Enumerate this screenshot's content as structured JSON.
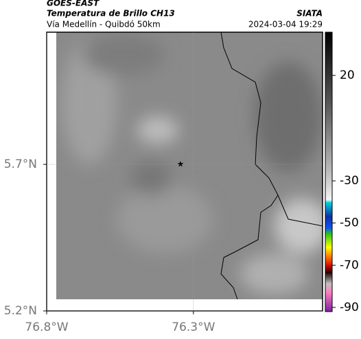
{
  "header": {
    "satellite": "GOES-EAST",
    "product": "Temperatura de Brillo CH13",
    "region": "Vía Medellín - Quibdó 50km",
    "source": "SIATA",
    "datetime": "2024-03-04 19:29"
  },
  "map": {
    "xlim": [
      -76.8,
      -75.86
    ],
    "ylim": [
      5.2,
      6.151
    ],
    "xticks": [
      {
        "value": -76.8,
        "label": "76.8°W"
      },
      {
        "value": -76.3,
        "label": "76.3°W"
      }
    ],
    "yticks": [
      {
        "value": 5.2,
        "label": "5.2°N"
      },
      {
        "value": 5.7,
        "label": "5.7°N"
      }
    ]
  },
  "colorbar": {
    "lim": [
      -92,
      40.5
    ],
    "ticks": [
      20,
      -30,
      -50,
      -70,
      -90
    ]
  }
}
